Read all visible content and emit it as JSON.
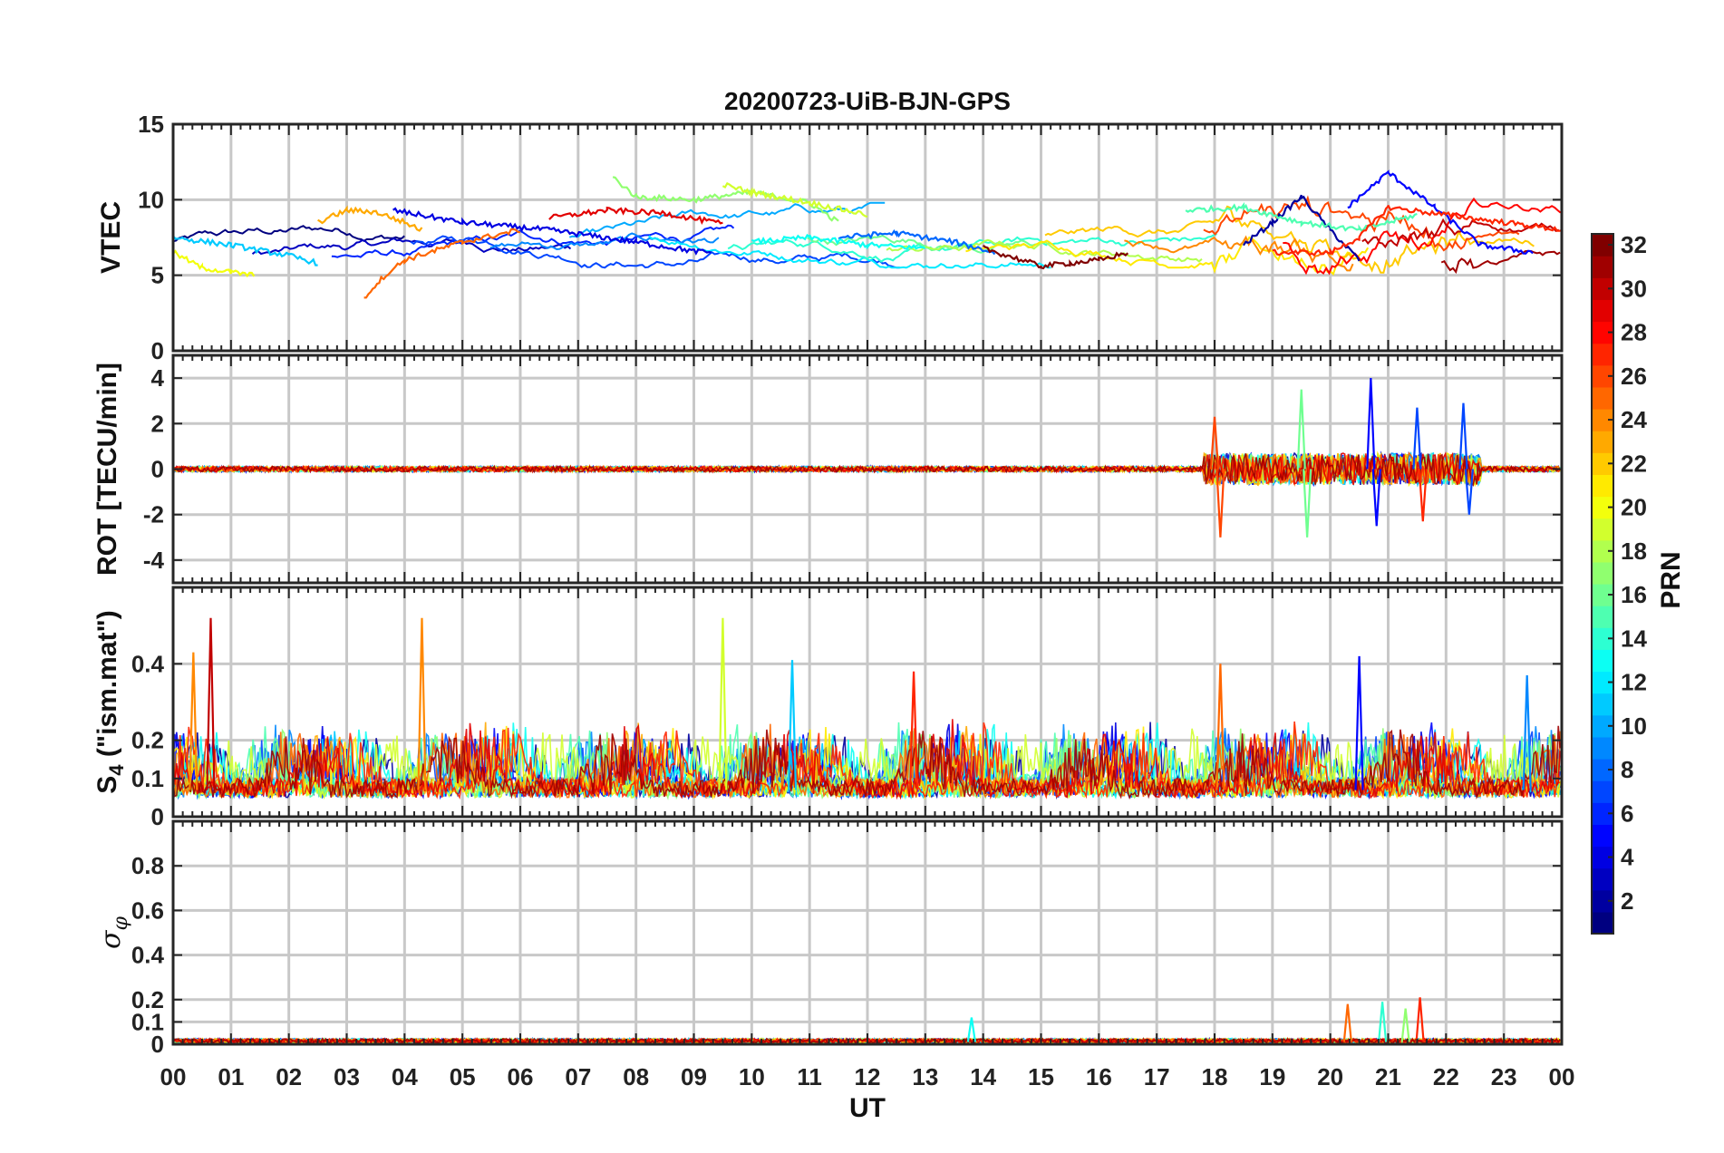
{
  "chart_data": {
    "title": "20200723-UiB-BJN-GPS",
    "xlabel": "UT",
    "x_ticks": [
      "00",
      "01",
      "02",
      "03",
      "04",
      "05",
      "06",
      "07",
      "08",
      "09",
      "10",
      "11",
      "12",
      "13",
      "14",
      "15",
      "16",
      "17",
      "18",
      "19",
      "20",
      "21",
      "22",
      "23",
      "00"
    ],
    "x_range_hours": [
      0,
      24
    ],
    "colorbar": {
      "label": "PRN",
      "range": [
        1,
        32
      ],
      "ticks": [
        "2",
        "4",
        "6",
        "8",
        "10",
        "12",
        "14",
        "16",
        "18",
        "20",
        "22",
        "24",
        "26",
        "28",
        "30",
        "32"
      ],
      "colormap": "jet"
    },
    "panels": [
      {
        "type": "line",
        "ylabel": "VTEC",
        "ylim": [
          0,
          15
        ],
        "yticks": [
          "0",
          "5",
          "10",
          "15"
        ],
        "description": "per-satellite VTEC traces, mostly 6–10 TECU, rising to ~12 near 21 UT",
        "series": [
          {
            "prn": 2,
            "x": [
              18.5,
              19.0,
              19.5,
              20.0,
              20.5
            ],
            "y": [
              7.0,
              8.5,
              10.2,
              8.0,
              6.0
            ]
          },
          {
            "prn": 4,
            "x": [
              3.8,
              5.0,
              6.5,
              8.0,
              9.0,
              9.3
            ],
            "y": [
              9.3,
              8.5,
              8.0,
              7.2,
              6.6,
              6.5
            ]
          },
          {
            "prn": 5,
            "x": [
              20.3,
              21.0,
              21.8,
              22.6,
              23.5
            ],
            "y": [
              9.5,
              11.8,
              9.5,
              7.0,
              6.5
            ]
          },
          {
            "prn": 8,
            "x": [
              11.5,
              12.5,
              13.5,
              14.2
            ],
            "y": [
              7.5,
              7.8,
              7.2,
              6.5
            ]
          },
          {
            "prn": 11,
            "x": [
              0.0,
              1.0,
              2.0,
              2.5
            ],
            "y": [
              7.5,
              7.0,
              6.3,
              5.8
            ]
          },
          {
            "prn": 13,
            "x": [
              10.0,
              11.0,
              12.0,
              13.0
            ],
            "y": [
              7.2,
              7.5,
              7.0,
              6.8
            ]
          },
          {
            "prn": 15,
            "x": [
              17.5,
              18.5,
              19.5,
              20.5,
              21.5
            ],
            "y": [
              9.3,
              9.5,
              8.5,
              8.0,
              9.0
            ]
          },
          {
            "prn": 17,
            "x": [
              7.6,
              8.0,
              9.0,
              10.0,
              11.0,
              11.5
            ],
            "y": [
              11.5,
              10.2,
              10.0,
              10.5,
              9.8,
              8.5
            ]
          },
          {
            "prn": 19,
            "x": [
              9.5,
              10.0,
              11.0,
              12.0
            ],
            "y": [
              11.0,
              10.5,
              9.8,
              9.0
            ]
          },
          {
            "prn": 20,
            "x": [
              0.0,
              0.5,
              1.0,
              1.4
            ],
            "y": [
              6.5,
              5.5,
              5.2,
              5.0
            ]
          },
          {
            "prn": 23,
            "x": [
              2.5,
              3.0,
              3.5,
              4.0,
              4.3
            ],
            "y": [
              8.5,
              9.3,
              9.2,
              8.5,
              8.0
            ]
          },
          {
            "prn": 25,
            "x": [
              3.3,
              3.6,
              4.0,
              5.0,
              6.0
            ],
            "y": [
              3.5,
              4.8,
              6.0,
              7.2,
              8.0
            ]
          },
          {
            "prn": 27,
            "x": [
              19.0,
              20.0,
              20.5,
              21.0,
              22.0,
              23.0,
              24.0
            ],
            "y": [
              6.5,
              6.5,
              7.5,
              9.5,
              9.0,
              8.5,
              8.0
            ]
          },
          {
            "prn": 29,
            "x": [
              6.5,
              7.5,
              8.5,
              9.5
            ],
            "y": [
              8.8,
              9.3,
              9.1,
              8.4
            ]
          },
          {
            "prn": 32,
            "x": [
              14.0,
              14.5,
              15.0,
              15.5,
              16.0,
              16.5
            ],
            "y": [
              6.8,
              6.2,
              5.6,
              5.8,
              6.0,
              6.5
            ]
          }
        ]
      },
      {
        "type": "line",
        "ylabel": "ROT [TECU/min]",
        "ylim": [
          -5,
          5
        ],
        "yticks": [
          "-4",
          "-2",
          "0",
          "2",
          "4"
        ],
        "description": "rate of TEC near zero until ~18 UT; spikes up to ±4 between 18 and 22.5 UT",
        "peaks": [
          {
            "x": 18.0,
            "y": 2.3,
            "prn": 26
          },
          {
            "x": 18.1,
            "y": -3.0,
            "prn": 26
          },
          {
            "x": 19.5,
            "y": 3.5,
            "prn": 16
          },
          {
            "x": 19.6,
            "y": -3.0,
            "prn": 16
          },
          {
            "x": 20.7,
            "y": 4.0,
            "prn": 5
          },
          {
            "x": 20.8,
            "y": -2.5,
            "prn": 5
          },
          {
            "x": 21.5,
            "y": 2.7,
            "prn": 7
          },
          {
            "x": 21.6,
            "y": -2.3,
            "prn": 27
          },
          {
            "x": 22.3,
            "y": 2.9,
            "prn": 7
          },
          {
            "x": 22.4,
            "y": -2.0,
            "prn": 7
          }
        ]
      },
      {
        "type": "line",
        "ylabel": "S4 (\"ism.mat\")",
        "ylabel_main": "S",
        "ylabel_sub": "4",
        "ylabel_rest": " (\"ism.mat\")",
        "ylim": [
          0,
          0.6
        ],
        "yticks": [
          "0",
          "0.1",
          "0.2",
          "0.4"
        ],
        "description": "amplitude scintillation index, mostly 0.05–0.2 with bursts up to ~0.52",
        "peaks": [
          {
            "x": 0.65,
            "y": 0.52,
            "prn": 30
          },
          {
            "x": 0.35,
            "y": 0.43,
            "prn": 24
          },
          {
            "x": 4.3,
            "y": 0.52,
            "prn": 24
          },
          {
            "x": 9.5,
            "y": 0.52,
            "prn": 19
          },
          {
            "x": 10.7,
            "y": 0.41,
            "prn": 11
          },
          {
            "x": 12.8,
            "y": 0.38,
            "prn": 27
          },
          {
            "x": 18.1,
            "y": 0.4,
            "prn": 25
          },
          {
            "x": 20.5,
            "y": 0.42,
            "prn": 5
          },
          {
            "x": 23.4,
            "y": 0.37,
            "prn": 9
          }
        ]
      },
      {
        "type": "line",
        "ylabel": "σφ",
        "ylabel_main": "σ",
        "ylabel_sub": "φ",
        "ylim": [
          0,
          1
        ],
        "yticks": [
          "0",
          "0.1",
          "0.2",
          "0.4",
          "0.6",
          "0.8"
        ],
        "description": "phase scintillation index, near zero except spikes ~0.2 near 20–21.5 UT",
        "peaks": [
          {
            "x": 13.8,
            "y": 0.12,
            "prn": 13
          },
          {
            "x": 20.3,
            "y": 0.18,
            "prn": 25
          },
          {
            "x": 20.9,
            "y": 0.19,
            "prn": 14
          },
          {
            "x": 21.3,
            "y": 0.16,
            "prn": 17
          },
          {
            "x": 21.55,
            "y": 0.21,
            "prn": 27
          }
        ]
      }
    ]
  }
}
